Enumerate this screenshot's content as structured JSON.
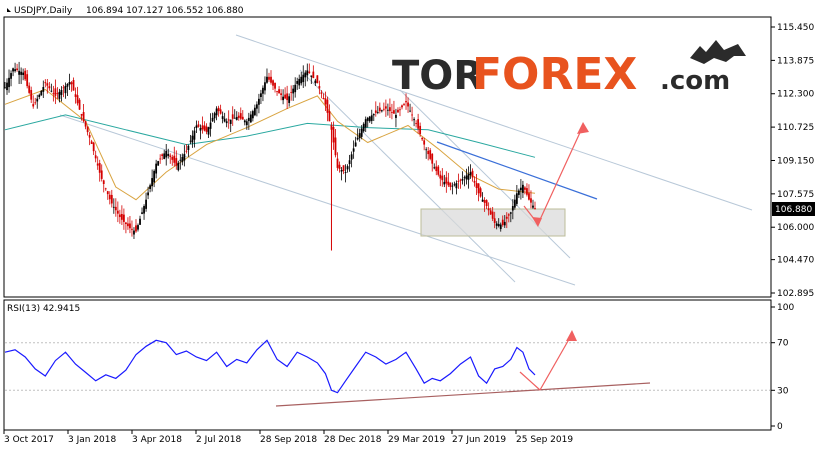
{
  "chart_header": {
    "symbol": "USDJPY,Daily",
    "ohlc": "106.894 107.127 106.552 106.880"
  },
  "rsi_header": "RSI(13) 42.9415",
  "logo": {
    "part1": "TOR",
    "part2": "FOREX",
    "part3": ".com"
  },
  "colors": {
    "bull": "#000000",
    "bear": "#d40000",
    "ma_fast": "#d9a441",
    "ma_slow": "#2aa8a0",
    "channel": "#b8c8d8",
    "trend_blue": "#3a6fd8",
    "arrow": "#f06060",
    "rsi": "#1a1aff",
    "rsi_trend": "#a86060",
    "zone": "#d8d8d8"
  },
  "chart_data": [
    {
      "type": "candlestick",
      "title": "USDJPY,Daily",
      "yticks": [
        "115.450",
        "113.875",
        "112.300",
        "110.725",
        "109.150",
        "107.575",
        "106.000",
        "104.470",
        "102.895"
      ],
      "ylim": [
        102.895,
        115.45
      ],
      "xticks": [
        "3 Oct 2017",
        "3 Jan 2018",
        "3 Apr 2018",
        "2 Jul 2018",
        "28 Sep 2018",
        "28 Dec 2018",
        "29 Mar 2019",
        "27 Jun 2019",
        "25 Sep 2019"
      ],
      "last_price": "106.880",
      "series_path": [
        [
          0,
          112.6
        ],
        [
          8,
          113.5
        ],
        [
          18,
          113.3
        ],
        [
          28,
          111.7
        ],
        [
          40,
          112.8
        ],
        [
          50,
          112.2
        ],
        [
          65,
          112.9
        ],
        [
          75,
          111.4
        ],
        [
          85,
          110.1
        ],
        [
          95,
          108.4
        ],
        [
          105,
          107.2
        ],
        [
          115,
          106.4
        ],
        [
          125,
          105.9
        ],
        [
          130,
          105.8
        ],
        [
          140,
          107.3
        ],
        [
          150,
          109.0
        ],
        [
          160,
          109.6
        ],
        [
          170,
          108.9
        ],
        [
          180,
          109.6
        ],
        [
          190,
          110.8
        ],
        [
          200,
          110.5
        ],
        [
          210,
          111.6
        ],
        [
          220,
          111.0
        ],
        [
          230,
          111.2
        ],
        [
          240,
          111.0
        ],
        [
          250,
          111.8
        ],
        [
          260,
          113.1
        ],
        [
          270,
          112.4
        ],
        [
          280,
          112.0
        ],
        [
          290,
          112.9
        ],
        [
          300,
          113.4
        ],
        [
          310,
          112.8
        ],
        [
          318,
          111.8
        ],
        [
          324,
          110.6
        ],
        [
          330,
          108.8
        ],
        [
          338,
          108.6
        ],
        [
          348,
          110.0
        ],
        [
          358,
          111.1
        ],
        [
          368,
          111.4
        ],
        [
          378,
          111.6
        ],
        [
          388,
          111.3
        ],
        [
          398,
          111.9
        ],
        [
          408,
          110.9
        ],
        [
          416,
          109.9
        ],
        [
          424,
          109.0
        ],
        [
          432,
          108.3
        ],
        [
          442,
          107.9
        ],
        [
          452,
          108.2
        ],
        [
          462,
          108.6
        ],
        [
          470,
          107.6
        ],
        [
          478,
          107.0
        ],
        [
          486,
          106.2
        ],
        [
          494,
          106.1
        ],
        [
          502,
          106.7
        ],
        [
          508,
          107.6
        ],
        [
          514,
          108.0
        ],
        [
          520,
          107.3
        ],
        [
          526,
          106.88
        ]
      ],
      "ma_fast_path": [
        [
          0,
          111.8
        ],
        [
          40,
          112.5
        ],
        [
          80,
          111.0
        ],
        [
          110,
          107.9
        ],
        [
          130,
          107.3
        ],
        [
          160,
          108.6
        ],
        [
          200,
          109.9
        ],
        [
          240,
          110.7
        ],
        [
          280,
          111.6
        ],
        [
          310,
          112.2
        ],
        [
          330,
          111.0
        ],
        [
          360,
          110.0
        ],
        [
          400,
          110.8
        ],
        [
          430,
          109.7
        ],
        [
          460,
          108.5
        ],
        [
          490,
          107.8
        ],
        [
          526,
          107.6
        ]
      ],
      "ma_slow_path": [
        [
          0,
          110.6
        ],
        [
          60,
          111.3
        ],
        [
          120,
          110.6
        ],
        [
          180,
          109.9
        ],
        [
          240,
          110.3
        ],
        [
          300,
          110.9
        ],
        [
          360,
          110.7
        ],
        [
          420,
          110.6
        ],
        [
          470,
          110.0
        ],
        [
          526,
          109.3
        ]
      ]
    },
    {
      "type": "line",
      "title": "RSI(13) 42.9415",
      "yticks": [
        "100",
        "70",
        "30",
        "0"
      ],
      "ylim": [
        0,
        100
      ],
      "series_path": [
        [
          0,
          62
        ],
        [
          10,
          64
        ],
        [
          20,
          58
        ],
        [
          30,
          48
        ],
        [
          40,
          42
        ],
        [
          50,
          55
        ],
        [
          60,
          62
        ],
        [
          70,
          52
        ],
        [
          80,
          45
        ],
        [
          90,
          38
        ],
        [
          100,
          43
        ],
        [
          110,
          40
        ],
        [
          120,
          47
        ],
        [
          130,
          60
        ],
        [
          140,
          67
        ],
        [
          150,
          72
        ],
        [
          160,
          70
        ],
        [
          170,
          60
        ],
        [
          180,
          63
        ],
        [
          190,
          58
        ],
        [
          200,
          55
        ],
        [
          210,
          62
        ],
        [
          220,
          50
        ],
        [
          230,
          56
        ],
        [
          240,
          53
        ],
        [
          250,
          64
        ],
        [
          260,
          72
        ],
        [
          270,
          56
        ],
        [
          280,
          50
        ],
        [
          290,
          62
        ],
        [
          300,
          58
        ],
        [
          310,
          53
        ],
        [
          318,
          44
        ],
        [
          324,
          30
        ],
        [
          330,
          28
        ],
        [
          338,
          38
        ],
        [
          348,
          50
        ],
        [
          358,
          62
        ],
        [
          368,
          58
        ],
        [
          378,
          52
        ],
        [
          388,
          56
        ],
        [
          398,
          62
        ],
        [
          408,
          48
        ],
        [
          416,
          36
        ],
        [
          424,
          40
        ],
        [
          432,
          38
        ],
        [
          442,
          44
        ],
        [
          452,
          52
        ],
        [
          462,
          58
        ],
        [
          470,
          42
        ],
        [
          478,
          36
        ],
        [
          486,
          48
        ],
        [
          494,
          50
        ],
        [
          502,
          56
        ],
        [
          508,
          66
        ],
        [
          514,
          62
        ],
        [
          520,
          48
        ],
        [
          526,
          42.94
        ]
      ]
    }
  ]
}
